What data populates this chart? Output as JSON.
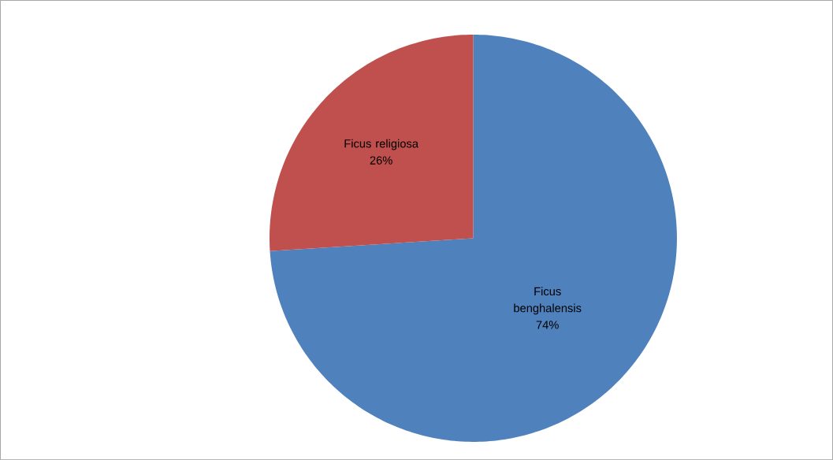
{
  "chart_data": {
    "type": "pie",
    "categories": [
      "Ficus benghalensis",
      "Ficus religiosa"
    ],
    "values": [
      74,
      26
    ],
    "colors": [
      "#4f81bd",
      "#c0504d"
    ],
    "value_labels": [
      "74%",
      "26%"
    ]
  }
}
